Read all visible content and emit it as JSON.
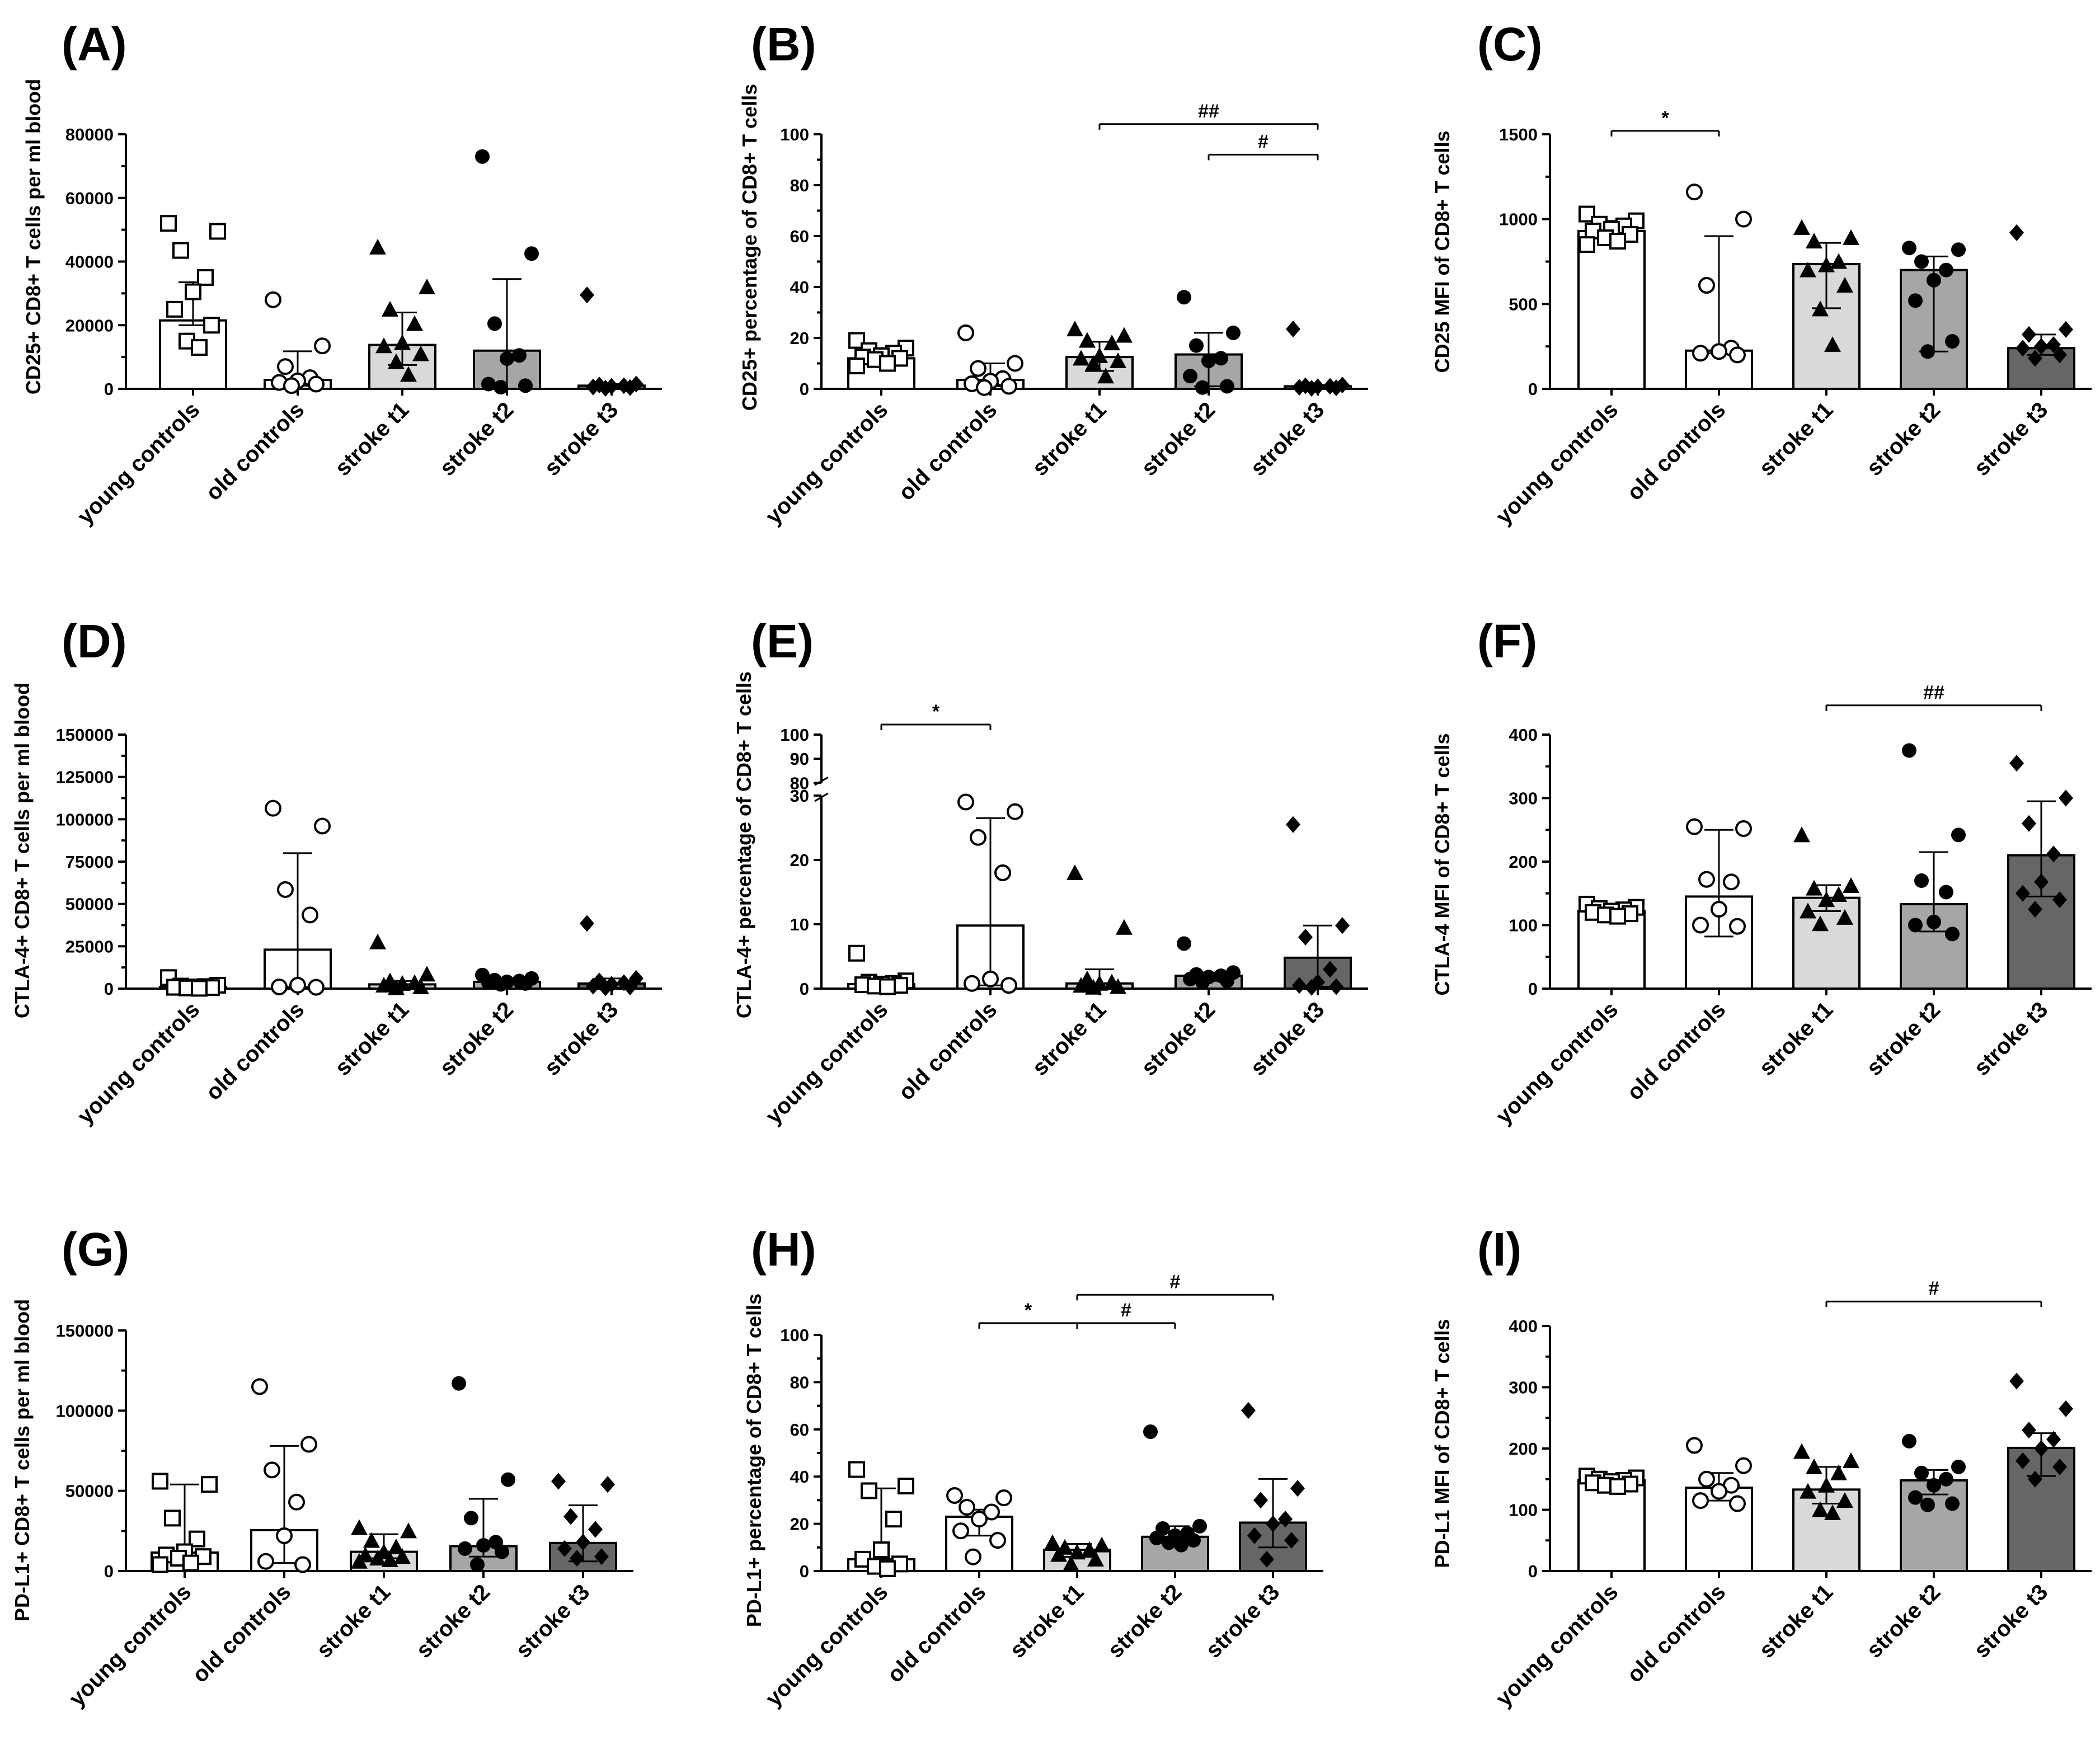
{
  "figure": {
    "categories": [
      "young controls",
      "old controls",
      "stroke t1",
      "stroke t2",
      "stroke t3"
    ],
    "bar_colors": [
      "#ffffff",
      "#ffffff",
      "#d9d9d9",
      "#a6a6a6",
      "#666666"
    ],
    "marker_shapes": [
      "square-open",
      "circle-open",
      "triangle",
      "circle",
      "diamond"
    ]
  },
  "chart_data": [
    {
      "panel": "(A)",
      "type": "bar",
      "ylabel": "CD25+ CD8+ T cells per ml blood",
      "ylim": [
        0,
        80000
      ],
      "yticks": [
        0,
        20000,
        40000,
        60000,
        80000
      ],
      "yticklabels": [
        "0",
        "20000",
        "40000",
        "60000",
        "80000"
      ],
      "categories": [
        "young controls",
        "old controls",
        "stroke t1",
        "stroke t2",
        "stroke t3"
      ],
      "values": [
        21500,
        2800,
        13800,
        12000,
        1000
      ],
      "error": [
        [
          20000,
          33500
        ],
        [
          1000,
          11800
        ],
        [
          7500,
          24000
        ],
        [
          0,
          34500
        ],
        [
          500,
          1500
        ]
      ],
      "points": [
        [
          52000,
          49500,
          43500,
          35000,
          30500,
          25000,
          20000,
          15000,
          13000
        ],
        [
          28000,
          13500,
          7000,
          3500,
          2500,
          2000,
          1500,
          1000
        ],
        [
          44500,
          32000,
          25000,
          20500,
          14500,
          13500,
          11000,
          8500,
          4500
        ],
        [
          73000,
          42500,
          20500,
          10500,
          9500,
          1500,
          1000,
          500
        ],
        [
          29500,
          1500,
          1200,
          1000,
          800,
          600,
          400,
          200
        ]
      ],
      "significance": []
    },
    {
      "panel": "(B)",
      "type": "bar",
      "ylabel": "CD25+ percentage of CD8+ T cells",
      "ylim": [
        0,
        100
      ],
      "yticks": [
        0,
        20,
        40,
        60,
        80,
        100
      ],
      "yticklabels": [
        "0",
        "20",
        "40",
        "60",
        "80",
        "100"
      ],
      "categories": [
        "young controls",
        "old controls",
        "stroke t1",
        "stroke t2",
        "stroke t3"
      ],
      "values": [
        12,
        3.5,
        12.5,
        13.5,
        1
      ],
      "error": [
        [
          9,
          16
        ],
        [
          1,
          10
        ],
        [
          7,
          18.5
        ],
        [
          1,
          22
        ],
        [
          0.5,
          1.5
        ]
      ],
      "points": [
        [
          19,
          16,
          15,
          14,
          13,
          12.5,
          12,
          11.5,
          10,
          9
        ],
        [
          22,
          10,
          8,
          4,
          3,
          2,
          1,
          0.5
        ],
        [
          23.5,
          21,
          19,
          18,
          13,
          12,
          11,
          10,
          5
        ],
        [
          36,
          22,
          17,
          12,
          11,
          5,
          1,
          0.5
        ],
        [
          23.5,
          1.5,
          1.2,
          1,
          0.8,
          0.6,
          0.4,
          0.2
        ]
      ],
      "significance": [
        {
          "from": 2,
          "to": 4,
          "y": 104,
          "label": "##"
        },
        {
          "from": 3,
          "to": 4,
          "y": 92,
          "label": "#"
        }
      ]
    },
    {
      "panel": "(C)",
      "type": "bar",
      "ylabel": "CD25 MFI of CD8+ T cells",
      "ylim": [
        0,
        1500
      ],
      "yticks": [
        0,
        500,
        1000,
        1500
      ],
      "yticklabels": [
        "0",
        "500",
        "1000",
        "1500"
      ],
      "categories": [
        "young controls",
        "old controls",
        "stroke t1",
        "stroke t2",
        "stroke t3"
      ],
      "values": [
        930,
        225,
        735,
        700,
        240
      ],
      "error": [
        [
          880,
          990
        ],
        [
          210,
          900
        ],
        [
          475,
          860
        ],
        [
          220,
          780
        ],
        [
          200,
          320
        ]
      ],
      "points": [
        [
          1030,
          990,
          970,
          960,
          940,
          930,
          910,
          890,
          870,
          850
        ],
        [
          1160,
          1000,
          610,
          240,
          220,
          210,
          200
        ],
        [
          950,
          890,
          870,
          750,
          730,
          700,
          610,
          470,
          260
        ],
        [
          830,
          820,
          750,
          700,
          640,
          520,
          280,
          220
        ],
        [
          920,
          350,
          320,
          260,
          250,
          240,
          200,
          180
        ]
      ],
      "significance": [
        {
          "from": 0,
          "to": 1,
          "y": 1520,
          "label": "*"
        }
      ]
    },
    {
      "panel": "(D)",
      "type": "bar",
      "ylabel": "CTLA-4+ CD8+ T cells per ml blood",
      "ylim": [
        0,
        150000
      ],
      "yticks": [
        0,
        25000,
        50000,
        75000,
        100000,
        125000,
        150000
      ],
      "yticklabels": [
        "0",
        "25000",
        "50000",
        "75000",
        "100000",
        "125000",
        "150000"
      ],
      "categories": [
        "young controls",
        "old controls",
        "stroke t1",
        "stroke t2",
        "stroke t3"
      ],
      "values": [
        1000,
        23000,
        2500,
        4000,
        3000
      ],
      "error": [
        [
          500,
          1500
        ],
        [
          1000,
          80000
        ],
        [
          500,
          4500
        ],
        [
          3000,
          6000
        ],
        [
          500,
          6000
        ]
      ],
      "points": [
        [
          6500,
          2000,
          1500,
          1200,
          1000,
          800,
          600,
          400,
          200
        ],
        [
          106500,
          96000,
          58500,
          43500,
          2000,
          1000,
          800
        ],
        [
          27500,
          8500,
          4500,
          3500,
          3000,
          2000,
          1000,
          500
        ],
        [
          8000,
          6000,
          5000,
          4500,
          4000,
          3500,
          3000,
          2500
        ],
        [
          38500,
          6000,
          4500,
          3500,
          2500,
          1500,
          1000,
          500
        ]
      ],
      "significance": []
    },
    {
      "panel": "(E)",
      "type": "bar",
      "ylabel": "CTLA-4+ percentage of CD8+ T cells",
      "ylim": [
        0,
        100
      ],
      "axis_break": {
        "lower": [
          0,
          30
        ],
        "upper": [
          80,
          100
        ]
      },
      "yticks": [
        0,
        10,
        20,
        30,
        80,
        90,
        100
      ],
      "yticklabels": [
        "0",
        "10",
        "20",
        "30",
        "80",
        "90",
        "100"
      ],
      "categories": [
        "young controls",
        "old controls",
        "stroke t1",
        "stroke t2",
        "stroke t3"
      ],
      "values": [
        0.7,
        9.8,
        0.8,
        2,
        4.8
      ],
      "error": [
        [
          0.3,
          1.2
        ],
        [
          0.5,
          26.5
        ],
        [
          0.3,
          3
        ],
        [
          1.2,
          2.5
        ],
        [
          0.3,
          9.8
        ]
      ],
      "points": [
        [
          5.5,
          1.2,
          1,
          0.8,
          0.7,
          0.6,
          0.5,
          0.4,
          0.3
        ],
        [
          29,
          27.5,
          23.5,
          18,
          1.5,
          0.8,
          0.5
        ],
        [
          18,
          9.5,
          1.5,
          1,
          0.8,
          0.5,
          0.3,
          0.2
        ],
        [
          7,
          2.5,
          2.2,
          2,
          1.8,
          1.5,
          1.2,
          1
        ],
        [
          25.5,
          9.8,
          8,
          3,
          1,
          0.5,
          0.3,
          0.2
        ]
      ],
      "significance": [
        {
          "from": 0,
          "to": 1,
          "y": 100,
          "label": "*"
        }
      ]
    },
    {
      "panel": "(F)",
      "type": "bar",
      "ylabel": "CTLA-4 MFI of CD8+ T cells",
      "ylim": [
        0,
        400
      ],
      "yticks": [
        0,
        100,
        200,
        300,
        400
      ],
      "yticklabels": [
        "0",
        "100",
        "200",
        "300",
        "400"
      ],
      "categories": [
        "young controls",
        "old controls",
        "stroke t1",
        "stroke t2",
        "stroke t3"
      ],
      "values": [
        122,
        145,
        143,
        133,
        210
      ],
      "error": [
        [
          115,
          128
        ],
        [
          82,
          250
        ],
        [
          122,
          163
        ],
        [
          90,
          215
        ],
        [
          145,
          295
        ]
      ],
      "points": [
        [
          133,
          128,
          126,
          124,
          122,
          120,
          118,
          116,
          114
        ],
        [
          255,
          252,
          172,
          168,
          125,
          100,
          98
        ],
        [
          242,
          162,
          158,
          148,
          140,
          122,
          112,
          102
        ],
        [
          375,
          242,
          170,
          152,
          105,
          100,
          86
        ],
        [
          355,
          300,
          260,
          212,
          168,
          150,
          140,
          125
        ]
      ],
      "significance": [
        {
          "from": 2,
          "to": 4,
          "y": 446,
          "label": "##"
        }
      ]
    },
    {
      "panel": "(G)",
      "type": "bar",
      "ylabel": "PD-L1+ CD8+ T cells per ml blood",
      "ylim": [
        0,
        150000
      ],
      "yticks": [
        0,
        50000,
        100000,
        150000
      ],
      "yticklabels": [
        "0",
        "50000",
        "100000",
        "150000"
      ],
      "categories": [
        "young controls",
        "old controls",
        "stroke t1",
        "stroke t2",
        "stroke t3"
      ],
      "values": [
        11500,
        25500,
        12000,
        15500,
        17500
      ],
      "error": [
        [
          5000,
          54000
        ],
        [
          5000,
          78000
        ],
        [
          8000,
          23000
        ],
        [
          9000,
          45000
        ],
        [
          6000,
          41000
        ]
      ],
      "points": [
        [
          56000,
          54000,
          33000,
          20000,
          12000,
          10000,
          9000,
          8000,
          5000,
          4000
        ],
        [
          115000,
          79000,
          63000,
          43000,
          22000,
          6000,
          4000
        ],
        [
          27000,
          25000,
          19000,
          15000,
          12000,
          10000,
          9000,
          8000,
          7000,
          6000
        ],
        [
          117000,
          57000,
          33000,
          18000,
          16000,
          14000,
          12000,
          4000
        ],
        [
          56000,
          54000,
          34000,
          26000,
          18000,
          14000,
          9000,
          8000
        ]
      ],
      "significance": []
    },
    {
      "panel": "(H)",
      "type": "bar",
      "ylabel": "PD-L1+ percentage of CD8+ T cells",
      "ylim": [
        0,
        100
      ],
      "yticks": [
        0,
        20,
        40,
        60,
        80,
        100
      ],
      "yticklabels": [
        "0",
        "20",
        "40",
        "60",
        "80",
        "100"
      ],
      "categories": [
        "young controls",
        "old controls",
        "stroke t1",
        "stroke t2",
        "stroke t3"
      ],
      "values": [
        5,
        23,
        9,
        14.5,
        20.5
      ],
      "error": [
        [
          2,
          35
        ],
        [
          15,
          26
        ],
        [
          6,
          11.5
        ],
        [
          12,
          19
        ],
        [
          10,
          39
        ]
      ],
      "points": [
        [
          43,
          36,
          34,
          22,
          9,
          5,
          3,
          2,
          1
        ],
        [
          32,
          31,
          27,
          25,
          22,
          17,
          13,
          6
        ],
        [
          12,
          11,
          10,
          9,
          8,
          7,
          5,
          3
        ],
        [
          59,
          19,
          18,
          16,
          15,
          14,
          13,
          12,
          11
        ],
        [
          68,
          35,
          30,
          22,
          20,
          15,
          13,
          5
        ]
      ],
      "significance": [
        {
          "from": 1,
          "to": 2,
          "y": 105,
          "label": "*"
        },
        {
          "from": 2,
          "to": 3,
          "y": 105,
          "label": "#"
        },
        {
          "from": 2,
          "to": 4,
          "y": 117,
          "label": "#"
        }
      ]
    },
    {
      "panel": "(I)",
      "type": "bar",
      "ylabel": "PD-L1 MFI of CD8+ T cells",
      "ylim": [
        0,
        400
      ],
      "yticks": [
        0,
        100,
        200,
        300,
        400
      ],
      "yticklabels": [
        "0",
        "100",
        "200",
        "300",
        "400"
      ],
      "categories": [
        "young controls",
        "old controls",
        "stroke t1",
        "stroke t2",
        "stroke t3"
      ],
      "values": [
        148,
        136,
        133,
        148,
        201
      ],
      "error": [
        [
          140,
          153
        ],
        [
          115,
          160
        ],
        [
          110,
          170
        ],
        [
          125,
          165
        ],
        [
          155,
          225
        ]
      ],
      "points": [
        [
          155,
          152,
          150,
          148,
          146,
          144,
          142,
          140,
          138
        ],
        [
          205,
          172,
          150,
          140,
          130,
          115,
          110
        ],
        [
          195,
          180,
          170,
          160,
          140,
          130,
          115,
          100,
          95
        ],
        [
          212,
          170,
          160,
          150,
          140,
          120,
          110,
          108
        ],
        [
          310,
          265,
          230,
          215,
          200,
          180,
          170,
          150
        ]
      ],
      "significance": [
        {
          "from": 2,
          "to": 4,
          "y": 440,
          "label": "#"
        }
      ]
    }
  ]
}
